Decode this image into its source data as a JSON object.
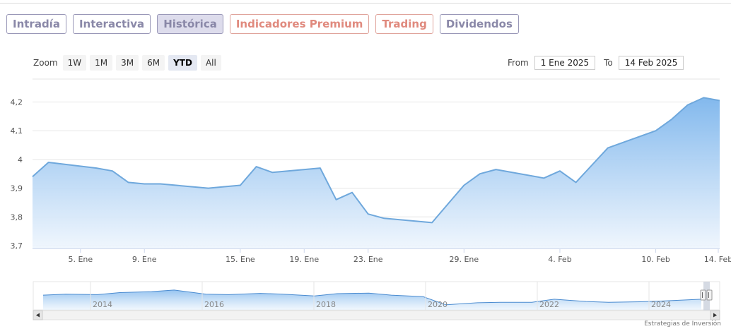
{
  "tabs": [
    {
      "label": "Intradía",
      "active": false,
      "style": "default"
    },
    {
      "label": "Interactiva",
      "active": false,
      "style": "default"
    },
    {
      "label": "Histórica",
      "active": true,
      "style": "default"
    },
    {
      "label": "Indicadores Premium",
      "active": false,
      "style": "red"
    },
    {
      "label": "Trading",
      "active": false,
      "style": "red"
    },
    {
      "label": "Dividendos",
      "active": false,
      "style": "default"
    }
  ],
  "zoom": {
    "label": "Zoom",
    "buttons": [
      {
        "label": "1W",
        "selected": false
      },
      {
        "label": "1M",
        "selected": false
      },
      {
        "label": "3M",
        "selected": false
      },
      {
        "label": "6M",
        "selected": false
      },
      {
        "label": "YTD",
        "selected": true
      },
      {
        "label": "All",
        "selected": false
      }
    ]
  },
  "range": {
    "from_label": "From",
    "from_value": "1 Ene 2025",
    "to_label": "To",
    "to_value": "14 Feb 2025"
  },
  "credit": "Estrategias de Inversión",
  "colors": {
    "line": "#6fa8dc",
    "fill_top": "#7cb5ec",
    "fill_bottom": "#eef5fd",
    "grid": "#e6e6e6"
  },
  "chart_data": {
    "type": "area",
    "x": [
      "2025-01-02",
      "2025-01-03",
      "2025-01-06",
      "2025-01-07",
      "2025-01-08",
      "2025-01-09",
      "2025-01-10",
      "2025-01-13",
      "2025-01-14",
      "2025-01-15",
      "2025-01-16",
      "2025-01-17",
      "2025-01-20",
      "2025-01-21",
      "2025-01-22",
      "2025-01-23",
      "2025-01-24",
      "2025-01-27",
      "2025-01-28",
      "2025-01-29",
      "2025-01-30",
      "2025-01-31",
      "2025-02-03",
      "2025-02-04",
      "2025-02-05",
      "2025-02-06",
      "2025-02-07",
      "2025-02-10",
      "2025-02-11",
      "2025-02-12",
      "2025-02-13",
      "2025-02-14"
    ],
    "values": [
      3.94,
      3.99,
      3.97,
      3.96,
      3.92,
      3.915,
      3.915,
      3.9,
      3.905,
      3.91,
      3.975,
      3.955,
      3.97,
      3.86,
      3.885,
      3.81,
      3.795,
      3.78,
      3.845,
      3.91,
      3.95,
      3.965,
      3.935,
      3.96,
      3.92,
      3.98,
      4.04,
      4.1,
      4.14,
      4.19,
      4.215,
      4.205
    ],
    "y_ticks": [
      "3,7",
      "3,8",
      "3,9",
      "4",
      "4,1",
      "4,2"
    ],
    "y_tick_values": [
      3.7,
      3.8,
      3.9,
      4.0,
      4.1,
      4.2
    ],
    "ylim": [
      3.69,
      4.28
    ],
    "x_ticks": [
      {
        "label": "5. Ene",
        "date": "2025-01-05"
      },
      {
        "label": "9. Ene",
        "date": "2025-01-09"
      },
      {
        "label": "15. Ene",
        "date": "2025-01-15"
      },
      {
        "label": "19. Ene",
        "date": "2025-01-19"
      },
      {
        "label": "23. Ene",
        "date": "2025-01-23"
      },
      {
        "label": "29. Ene",
        "date": "2025-01-29"
      },
      {
        "label": "4. Feb",
        "date": "2025-02-04"
      },
      {
        "label": "10. Feb",
        "date": "2025-02-10"
      },
      {
        "label": "14. Feb",
        "date": "2025-02-14"
      }
    ],
    "grid": true,
    "legend": false,
    "navigator": {
      "x_ticks": [
        "2014",
        "2016",
        "2018",
        "2020",
        "2022",
        "2024"
      ],
      "series": [
        {
          "date": "2013-01-01",
          "value": 0.58
        },
        {
          "date": "2013-06-01",
          "value": 0.62
        },
        {
          "date": "2014-01-01",
          "value": 0.6
        },
        {
          "date": "2014-06-01",
          "value": 0.68
        },
        {
          "date": "2015-01-01",
          "value": 0.72
        },
        {
          "date": "2015-06-01",
          "value": 0.78
        },
        {
          "date": "2016-01-01",
          "value": 0.62
        },
        {
          "date": "2016-06-01",
          "value": 0.6
        },
        {
          "date": "2017-01-01",
          "value": 0.65
        },
        {
          "date": "2017-06-01",
          "value": 0.62
        },
        {
          "date": "2018-01-01",
          "value": 0.55
        },
        {
          "date": "2018-06-01",
          "value": 0.64
        },
        {
          "date": "2019-01-01",
          "value": 0.66
        },
        {
          "date": "2019-06-01",
          "value": 0.58
        },
        {
          "date": "2020-01-01",
          "value": 0.52
        },
        {
          "date": "2020-06-01",
          "value": 0.2
        },
        {
          "date": "2021-01-01",
          "value": 0.28
        },
        {
          "date": "2021-06-01",
          "value": 0.3
        },
        {
          "date": "2022-01-01",
          "value": 0.3
        },
        {
          "date": "2022-06-01",
          "value": 0.42
        },
        {
          "date": "2023-01-01",
          "value": 0.33
        },
        {
          "date": "2023-06-01",
          "value": 0.3
        },
        {
          "date": "2024-01-01",
          "value": 0.32
        },
        {
          "date": "2024-06-01",
          "value": 0.35
        },
        {
          "date": "2025-02-14",
          "value": 0.42
        }
      ]
    }
  }
}
